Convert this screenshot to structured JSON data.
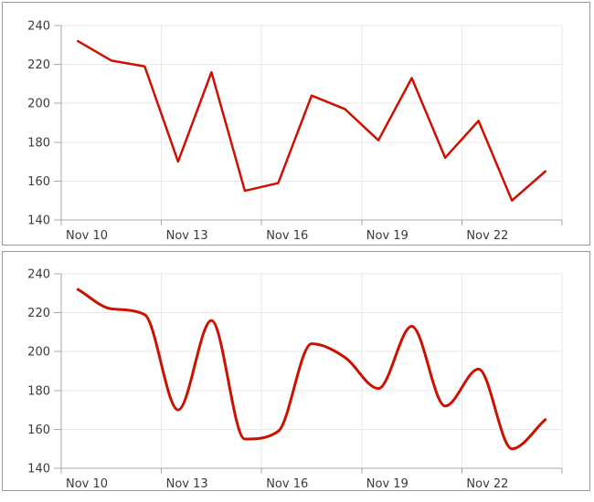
{
  "style": {
    "series_color": "#cc1100",
    "grid_color": "#e7e7e7",
    "axis_color": "#aaaaaa",
    "tick_label_color": "#3b3b3b",
    "panel_border_color": "#999999",
    "panel_background": "#ffffff"
  },
  "panels": [
    {
      "id": "linear-chart-panel",
      "description": "line chart, straight segments"
    },
    {
      "id": "smooth-chart-panel",
      "description": "same series, smoothed spline"
    }
  ],
  "chart_data": [
    {
      "type": "line",
      "interpolation": "linear",
      "title": "",
      "xlabel": "",
      "ylabel": "",
      "x": [
        "Nov 10",
        "Nov 11",
        "Nov 12",
        "Nov 13",
        "Nov 14",
        "Nov 15",
        "Nov 16",
        "Nov 17",
        "Nov 18",
        "Nov 19",
        "Nov 20",
        "Nov 21",
        "Nov 22",
        "Nov 23",
        "Nov 24"
      ],
      "series": [
        {
          "name": "value",
          "color": "#cc1100",
          "values": [
            232,
            222,
            219,
            170,
            216,
            155,
            159,
            204,
            197,
            181,
            213,
            172,
            191,
            150,
            165
          ]
        }
      ],
      "ylim": [
        140,
        240
      ],
      "ytick_step": 20,
      "xtick_every": 3,
      "visible_xtick_labels": [
        "Nov 10",
        "Nov 13",
        "Nov 16",
        "Nov 19",
        "Nov 22"
      ],
      "visible_ytick_labels": [
        "140",
        "160",
        "180",
        "200",
        "220",
        "240"
      ],
      "grid": true,
      "legend": "none",
      "line_width": 2.5
    },
    {
      "type": "line",
      "interpolation": "spline",
      "title": "",
      "xlabel": "",
      "ylabel": "",
      "x": [
        "Nov 10",
        "Nov 11",
        "Nov 12",
        "Nov 13",
        "Nov 14",
        "Nov 15",
        "Nov 16",
        "Nov 17",
        "Nov 18",
        "Nov 19",
        "Nov 20",
        "Nov 21",
        "Nov 22",
        "Nov 23",
        "Nov 24"
      ],
      "series": [
        {
          "name": "value",
          "color": "#cc1100",
          "values": [
            232,
            222,
            219,
            170,
            216,
            155,
            159,
            204,
            197,
            181,
            213,
            172,
            191,
            150,
            165
          ]
        }
      ],
      "ylim": [
        140,
        240
      ],
      "ytick_step": 20,
      "xtick_every": 3,
      "visible_xtick_labels": [
        "Nov 10",
        "Nov 13",
        "Nov 16",
        "Nov 19",
        "Nov 22"
      ],
      "visible_ytick_labels": [
        "140",
        "160",
        "180",
        "200",
        "220",
        "240"
      ],
      "grid": true,
      "legend": "none",
      "line_width": 3
    }
  ]
}
